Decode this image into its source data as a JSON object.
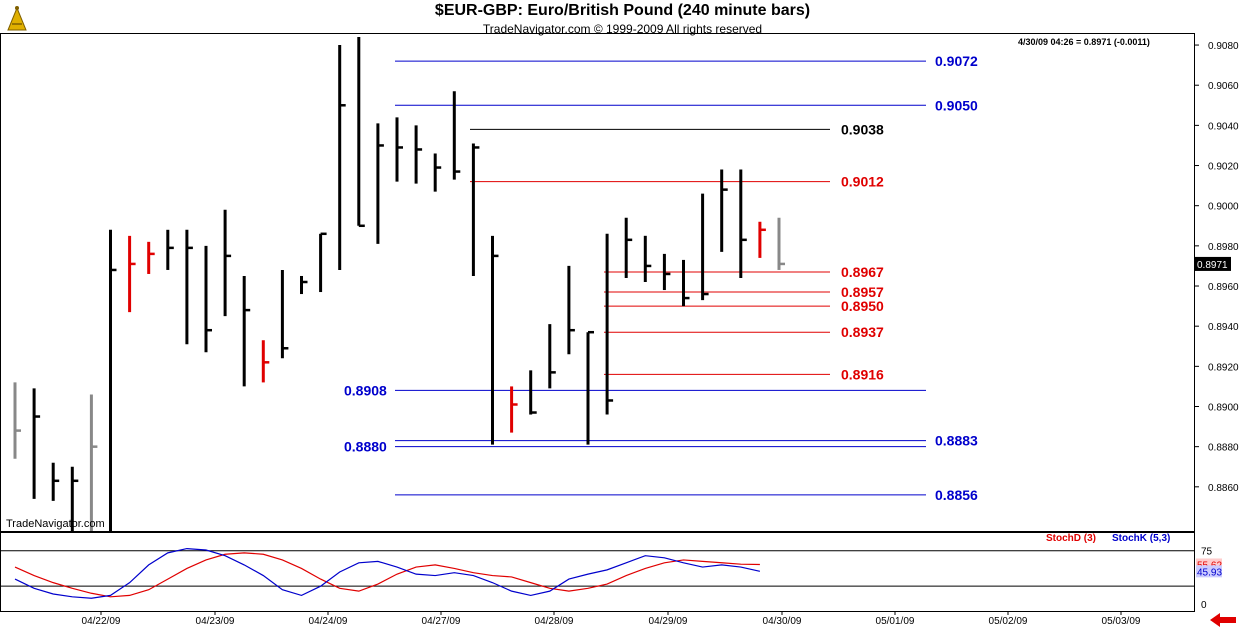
{
  "header": {
    "title": "$EUR-GBP:  Euro/British Pound  (240 minute bars)",
    "subtitle": "TradeNavigator.com © 1999-2009 All rights reserved",
    "watermark": "TradeNavigator.com",
    "readout": "4/30/09 04:26 = 0.8971 (-0.0011)"
  },
  "colors": {
    "up_bar": "#000000",
    "signal_bar": "#e00000",
    "prior_bar": "#888888",
    "blue_level": "#0000cc",
    "red_level": "#e00000",
    "black_level": "#000000",
    "stoch_d": "#e00000",
    "stoch_k": "#0000cc"
  },
  "chart_data": [
    {
      "type": "ohlc",
      "y_axis": {
        "ylim": [
          0.8838,
          0.9086
        ],
        "ticks": [
          "0.9080",
          "0.9060",
          "0.9040",
          "0.9020",
          "0.9000",
          "0.8980",
          "0.8960",
          "0.8940",
          "0.8920",
          "0.8900",
          "0.8880",
          "0.8860"
        ],
        "current_value_label": "0.8971"
      },
      "x_axis": {
        "tick_labels": [
          "04/22/09",
          "04/23/09",
          "04/24/09",
          "04/27/09",
          "04/28/09",
          "04/29/09",
          "04/30/09",
          "05/01/09",
          "05/02/09",
          "05/03/09"
        ]
      },
      "bars": [
        {
          "high": 0.8912,
          "low": 0.8874,
          "close": 0.8888,
          "color": "gray"
        },
        {
          "high": 0.8909,
          "low": 0.8854,
          "close": 0.8895,
          "color": "black"
        },
        {
          "high": 0.8872,
          "low": 0.8853,
          "close": 0.8863,
          "color": "black"
        },
        {
          "high": 0.887,
          "low": 0.8838,
          "close": 0.8863,
          "color": "black"
        },
        {
          "high": 0.8906,
          "low": 0.8838,
          "close": 0.888,
          "color": "gray"
        },
        {
          "high": 0.8988,
          "low": 0.8838,
          "close": 0.8968,
          "color": "black"
        },
        {
          "high": 0.8985,
          "low": 0.8947,
          "close": 0.8971,
          "color": "red"
        },
        {
          "high": 0.8982,
          "low": 0.8966,
          "close": 0.8976,
          "color": "red"
        },
        {
          "high": 0.8988,
          "low": 0.8968,
          "close": 0.8979,
          "color": "black"
        },
        {
          "high": 0.8988,
          "low": 0.8931,
          "close": 0.8979,
          "color": "black"
        },
        {
          "high": 0.898,
          "low": 0.8927,
          "close": 0.8938,
          "color": "black"
        },
        {
          "high": 0.8998,
          "low": 0.8945,
          "close": 0.8975,
          "color": "black"
        },
        {
          "high": 0.8965,
          "low": 0.891,
          "close": 0.8948,
          "color": "black"
        },
        {
          "high": 0.8933,
          "low": 0.8912,
          "close": 0.8922,
          "color": "red"
        },
        {
          "high": 0.8968,
          "low": 0.8924,
          "close": 0.8929,
          "color": "black"
        },
        {
          "high": 0.8965,
          "low": 0.8956,
          "close": 0.8962,
          "color": "black"
        },
        {
          "high": 0.8986,
          "low": 0.8957,
          "close": 0.8986,
          "color": "black"
        },
        {
          "high": 0.908,
          "low": 0.8968,
          "close": 0.905,
          "color": "black"
        },
        {
          "high": 0.9084,
          "low": 0.899,
          "close": 0.899,
          "color": "black"
        },
        {
          "high": 0.9041,
          "low": 0.8981,
          "close": 0.903,
          "color": "black"
        },
        {
          "high": 0.9044,
          "low": 0.9012,
          "close": 0.9029,
          "color": "black"
        },
        {
          "high": 0.904,
          "low": 0.9011,
          "close": 0.9028,
          "color": "black"
        },
        {
          "high": 0.9026,
          "low": 0.9007,
          "close": 0.9019,
          "color": "black"
        },
        {
          "high": 0.9057,
          "low": 0.9013,
          "close": 0.9017,
          "color": "black"
        },
        {
          "high": 0.9031,
          "low": 0.8965,
          "close": 0.9029,
          "color": "black"
        },
        {
          "high": 0.8985,
          "low": 0.8881,
          "close": 0.8975,
          "color": "black"
        },
        {
          "high": 0.891,
          "low": 0.8887,
          "close": 0.8901,
          "color": "red"
        },
        {
          "high": 0.8918,
          "low": 0.8896,
          "close": 0.8897,
          "color": "black"
        },
        {
          "high": 0.8941,
          "low": 0.8909,
          "close": 0.8917,
          "color": "black"
        },
        {
          "high": 0.897,
          "low": 0.8926,
          "close": 0.8938,
          "color": "black"
        },
        {
          "high": 0.8937,
          "low": 0.8881,
          "close": 0.8937,
          "color": "black"
        },
        {
          "high": 0.8986,
          "low": 0.8896,
          "close": 0.8903,
          "color": "black"
        },
        {
          "high": 0.8994,
          "low": 0.8964,
          "close": 0.8983,
          "color": "black"
        },
        {
          "high": 0.8985,
          "low": 0.8962,
          "close": 0.897,
          "color": "black"
        },
        {
          "high": 0.8976,
          "low": 0.8958,
          "close": 0.8966,
          "color": "black"
        },
        {
          "high": 0.8973,
          "low": 0.895,
          "close": 0.8954,
          "color": "black"
        },
        {
          "high": 0.9006,
          "low": 0.8953,
          "close": 0.8956,
          "color": "black"
        },
        {
          "high": 0.9018,
          "low": 0.8977,
          "close": 0.9008,
          "color": "black"
        },
        {
          "high": 0.9018,
          "low": 0.8964,
          "close": 0.8983,
          "color": "black"
        },
        {
          "high": 0.8992,
          "low": 0.8974,
          "close": 0.8988,
          "color": "red"
        },
        {
          "high": 0.8994,
          "low": 0.8968,
          "close": 0.8971,
          "color": "gray"
        }
      ],
      "levels": [
        {
          "value": 0.9072,
          "label": "0.9072",
          "color": "blue",
          "label_side": "right"
        },
        {
          "value": 0.905,
          "label": "0.9050",
          "color": "blue",
          "label_side": "right"
        },
        {
          "value": 0.9038,
          "label": "0.9038",
          "color": "black",
          "label_side": "right"
        },
        {
          "value": 0.9012,
          "label": "0.9012",
          "color": "red",
          "label_side": "right"
        },
        {
          "value": 0.8967,
          "label": "0.8967",
          "color": "red",
          "label_side": "right"
        },
        {
          "value": 0.8957,
          "label": "0.8957",
          "color": "red",
          "label_side": "right"
        },
        {
          "value": 0.895,
          "label": "0.8950",
          "color": "red",
          "label_side": "right"
        },
        {
          "value": 0.8937,
          "label": "0.8937",
          "color": "red",
          "label_side": "right"
        },
        {
          "value": 0.8916,
          "label": "0.8916",
          "color": "red",
          "label_side": "right"
        },
        {
          "value": 0.8908,
          "label": "0.8908",
          "color": "blue",
          "label_side": "left"
        },
        {
          "value": 0.8883,
          "label": "0.8883",
          "color": "blue",
          "label_side": "right"
        },
        {
          "value": 0.888,
          "label": "0.8880",
          "color": "blue",
          "label_side": "left"
        },
        {
          "value": 0.8856,
          "label": "0.8856",
          "color": "blue",
          "label_side": "right"
        }
      ]
    },
    {
      "type": "line",
      "ylim": [
        -10,
        100
      ],
      "reference_lines": [
        75,
        25
      ],
      "y_ticks": [
        "75",
        "0"
      ],
      "value_labels": [
        "55.62",
        "45.93"
      ],
      "legend": [
        "StochD (3)",
        "StochK (5,3)"
      ],
      "series": [
        {
          "name": "StochD (3)",
          "color": "red",
          "values": [
            52,
            40,
            30,
            22,
            15,
            10,
            12,
            20,
            35,
            50,
            62,
            70,
            72,
            70,
            62,
            50,
            35,
            22,
            18,
            28,
            42,
            52,
            55,
            50,
            44,
            40,
            38,
            30,
            22,
            18,
            22,
            28,
            40,
            50,
            58,
            62,
            60,
            58,
            56,
            55.62
          ]
        },
        {
          "name": "StochK (5,3)",
          "color": "blue",
          "values": [
            35,
            22,
            14,
            10,
            8,
            12,
            30,
            55,
            72,
            78,
            76,
            68,
            55,
            40,
            20,
            12,
            25,
            45,
            58,
            60,
            52,
            42,
            40,
            44,
            40,
            30,
            18,
            12,
            18,
            35,
            42,
            48,
            58,
            68,
            65,
            58,
            52,
            55,
            52,
            45.93
          ]
        }
      ]
    }
  ]
}
